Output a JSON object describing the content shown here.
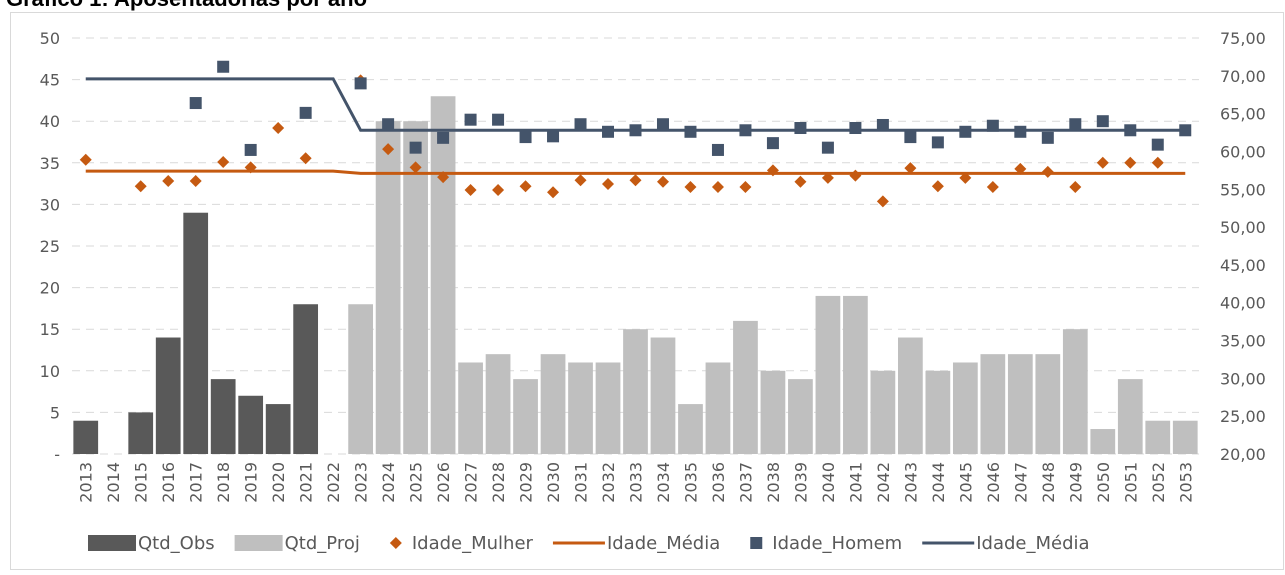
{
  "chart_data": {
    "type": "combo",
    "title": "Gráfico 1: Aposentadorias por ano",
    "categories": [
      "2013",
      "2014",
      "2015",
      "2016",
      "2017",
      "2018",
      "2019",
      "2020",
      "2021",
      "2022",
      "2023",
      "2024",
      "2025",
      "2026",
      "2027",
      "2028",
      "2029",
      "2030",
      "2031",
      "2032",
      "2033",
      "2034",
      "2035",
      "2036",
      "2037",
      "2038",
      "2039",
      "2040",
      "2041",
      "2042",
      "2043",
      "2044",
      "2045",
      "2046",
      "2047",
      "2048",
      "2049",
      "2050",
      "2051",
      "2052",
      "2053"
    ],
    "ylim": [
      0,
      50
    ],
    "yticks": [
      {
        "value": 0,
        "label": "-"
      },
      5,
      10,
      15,
      20,
      25,
      30,
      35,
      40,
      45,
      50
    ],
    "y2lim": [
      20,
      75
    ],
    "y2ticks": [
      {
        "value": 20,
        "label": "20,00"
      },
      {
        "value": 25,
        "label": "25,00"
      },
      {
        "value": 30,
        "label": "30,00"
      },
      {
        "value": 35,
        "label": "35,00"
      },
      {
        "value": 40,
        "label": "40,00"
      },
      {
        "value": 45,
        "label": "45,00"
      },
      {
        "value": 50,
        "label": "50,00"
      },
      {
        "value": 55,
        "label": "55,00"
      },
      {
        "value": 60,
        "label": "60,00"
      },
      {
        "value": 65,
        "label": "65,00"
      },
      {
        "value": 70,
        "label": "70,00"
      },
      {
        "value": 75,
        "label": "75,00"
      }
    ],
    "grid": true,
    "legend": "bottom",
    "series": [
      {
        "name": "Qtd_Obs",
        "kind": "bar",
        "color": "#595959",
        "values": [
          4,
          null,
          5,
          14,
          29,
          9,
          7,
          6,
          18,
          null,
          null,
          null,
          null,
          null,
          null,
          null,
          null,
          null,
          null,
          null,
          null,
          null,
          null,
          null,
          null,
          null,
          null,
          null,
          null,
          null,
          null,
          null,
          null,
          null,
          null,
          null,
          null,
          null,
          null,
          null,
          null
        ]
      },
      {
        "name": "Qtd_Proj",
        "kind": "bar",
        "color": "#bfbfbf",
        "values": [
          null,
          null,
          null,
          null,
          null,
          null,
          null,
          null,
          null,
          null,
          18,
          40,
          40,
          43,
          11,
          12,
          9,
          12,
          11,
          11,
          15,
          14,
          6,
          11,
          16,
          10,
          9,
          19,
          19,
          10,
          14,
          10,
          11,
          12,
          12,
          12,
          15,
          3,
          9,
          4,
          4
        ]
      },
      {
        "name": "Idade_Mulher",
        "kind": "diamond",
        "axis": "y2",
        "color": "#c55a11",
        "values": [
          58.9,
          null,
          55.4,
          56.1,
          56.1,
          58.6,
          57.9,
          63.1,
          59.1,
          null,
          69.4,
          60.3,
          57.9,
          56.6,
          54.9,
          54.9,
          55.4,
          54.6,
          56.2,
          55.7,
          56.2,
          56.0,
          55.3,
          55.3,
          55.3,
          57.5,
          56.0,
          56.5,
          56.8,
          53.4,
          57.8,
          55.4,
          56.5,
          55.3,
          57.7,
          57.3,
          55.3,
          58.5,
          58.5,
          58.5,
          null
        ]
      },
      {
        "name": "Idade_Média",
        "kind": "line",
        "axis": "y2",
        "color": "#c55a11",
        "values": [
          57.4,
          57.4,
          57.4,
          57.4,
          57.4,
          57.4,
          57.4,
          57.4,
          57.4,
          57.4,
          57.1,
          57.1,
          57.1,
          57.1,
          57.1,
          57.1,
          57.1,
          57.1,
          57.1,
          57.1,
          57.1,
          57.1,
          57.1,
          57.1,
          57.1,
          57.1,
          57.1,
          57.1,
          57.1,
          57.1,
          57.1,
          57.1,
          57.1,
          57.1,
          57.1,
          57.1,
          57.1,
          57.1,
          57.1,
          57.1,
          57.1
        ]
      },
      {
        "name": "Idade_Homem",
        "kind": "square",
        "axis": "y2",
        "color": "#44546a",
        "values": [
          null,
          null,
          null,
          null,
          66.4,
          71.2,
          60.2,
          null,
          65.1,
          null,
          69.0,
          63.6,
          60.5,
          61.8,
          64.2,
          64.2,
          61.9,
          62.0,
          63.6,
          62.6,
          62.8,
          63.6,
          62.6,
          60.2,
          62.8,
          61.1,
          63.1,
          60.5,
          63.1,
          63.5,
          61.9,
          61.2,
          62.6,
          63.4,
          62.6,
          61.8,
          63.6,
          64.0,
          62.8,
          60.9,
          62.8
        ]
      },
      {
        "name": "Idade_Média",
        "kind": "line",
        "axis": "y2",
        "color": "#44546a",
        "values": [
          69.6,
          69.6,
          69.6,
          69.6,
          69.6,
          69.6,
          69.6,
          69.6,
          69.6,
          69.6,
          62.8,
          62.8,
          62.8,
          62.8,
          62.8,
          62.8,
          62.8,
          62.8,
          62.8,
          62.8,
          62.8,
          62.8,
          62.8,
          62.8,
          62.8,
          62.8,
          62.8,
          62.8,
          62.8,
          62.8,
          62.8,
          62.8,
          62.8,
          62.8,
          62.8,
          62.8,
          62.8,
          62.8,
          62.8,
          62.8,
          62.8
        ]
      }
    ]
  }
}
